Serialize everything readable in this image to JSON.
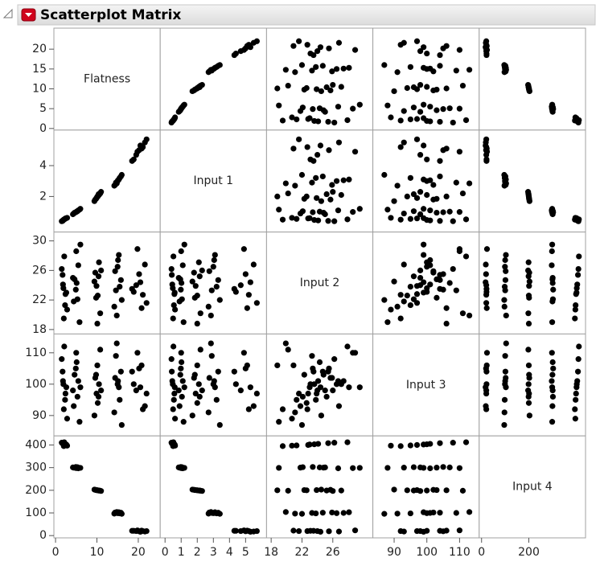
{
  "chart_data": {
    "type": "scatter_matrix",
    "title": "Scatterplot Matrix",
    "color": "#000000",
    "variables": [
      {
        "name": "Flatness",
        "lim": [
          -0.4,
          25.3
        ],
        "yticks": [
          0,
          5,
          10,
          15,
          20
        ],
        "xticks": [
          0,
          10,
          20
        ],
        "values": [
          1.8,
          2.3,
          1.5,
          2.6,
          2.0,
          1.7,
          2.4,
          2.1,
          1.9,
          2.8,
          4.6,
          5.3,
          5.0,
          4.2,
          5.8,
          4.9,
          5.5,
          4.4,
          5.1,
          6.0,
          10.2,
          9.6,
          10.8,
          9.9,
          10.5,
          9.4,
          10.1,
          11.0,
          9.8,
          10.4,
          14.6,
          15.3,
          14.2,
          15.8,
          15.0,
          14.8,
          15.5,
          14.4,
          16.0,
          15.1,
          19.5,
          20.8,
          21.6,
          18.9,
          20.2,
          22.0,
          19.8,
          20.5,
          21.1,
          18.5
        ]
      },
      {
        "name": "Input 1",
        "lim": [
          -0.3,
          6.3
        ],
        "yticks": [
          2,
          4
        ],
        "xticks": [
          0,
          1,
          2,
          3,
          4,
          5
        ],
        "values": [
          0.45,
          0.55,
          0.4,
          0.6,
          0.5,
          0.42,
          0.58,
          0.52,
          0.48,
          0.62,
          0.95,
          1.05,
          1.0,
          0.85,
          1.15,
          0.98,
          1.1,
          0.9,
          1.02,
          1.2,
          2.0,
          1.8,
          2.2,
          1.9,
          2.1,
          1.7,
          2.0,
          2.3,
          1.85,
          2.15,
          2.9,
          3.1,
          2.7,
          3.3,
          3.0,
          2.85,
          3.2,
          2.75,
          3.4,
          3.05,
          4.7,
          5.1,
          5.5,
          4.4,
          5.0,
          5.7,
          4.9,
          5.3,
          5.2,
          4.3
        ]
      },
      {
        "name": "Input 2",
        "lim": [
          17.4,
          31.2
        ],
        "yticks": [
          18,
          22,
          26,
          30
        ],
        "xticks": [
          18,
          22,
          26
        ],
        "values": [
          24.1,
          21.3,
          26.2,
          23.0,
          19.5,
          25.4,
          22.8,
          27.9,
          23.6,
          20.7,
          24.8,
          22.1,
          28.6,
          25.0,
          19.0,
          23.4,
          26.7,
          21.8,
          24.3,
          29.5,
          22.6,
          25.7,
          20.2,
          23.9,
          27.1,
          24.5,
          18.8,
          26.0,
          22.3,
          25.2,
          23.3,
          28.1,
          21.1,
          24.7,
          26.5,
          19.9,
          23.8,
          25.9,
          22.0,
          27.4,
          24.0,
          20.9,
          26.8,
          23.1,
          25.5,
          21.6,
          28.9,
          24.4,
          22.7,
          23.5
        ]
      },
      {
        "name": "Input 3",
        "lim": [
          83.5,
          116
        ],
        "yticks": [
          90,
          100,
          110
        ],
        "xticks": [
          90,
          100,
          110
        ],
        "values": [
          101,
          95,
          108,
          99,
          92,
          104,
          97,
          112,
          100,
          89,
          103,
          96,
          110,
          98,
          88,
          105,
          101,
          93,
          107,
          99,
          94,
          102,
          111,
          97,
          100,
          90,
          106,
          98,
          103,
          96,
          109,
          99,
          91,
          104,
          100,
          113,
          95,
          102,
          87,
          101,
          98,
          106,
          93,
          100,
          105,
          97,
          110,
          99,
          92,
          104
        ]
      },
      {
        "name": "Input 4",
        "lim": [
          -10,
          440
        ],
        "yticks": [
          0,
          100,
          200,
          300,
          400
        ],
        "xticks": [
          0,
          200
        ],
        "values": [
          405,
          398,
          410,
          402,
          395,
          408,
          400,
          412,
          403,
          397,
          300,
          302,
          298,
          301,
          299,
          303,
          297,
          300,
          301,
          299,
          200,
          202,
          198,
          201,
          199,
          203,
          200,
          197,
          201,
          199,
          100,
          103,
          97,
          101,
          99,
          104,
          98,
          102,
          96,
          100,
          20,
          22,
          18,
          21,
          19,
          20,
          23,
          17,
          20,
          21
        ]
      }
    ]
  }
}
